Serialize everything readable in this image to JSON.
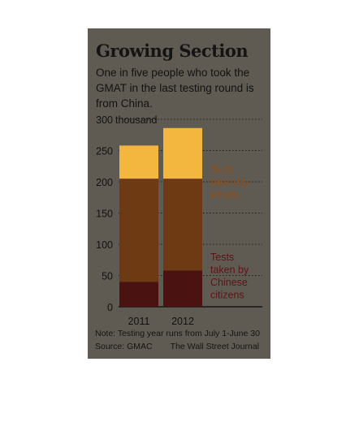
{
  "title": "Growing Section",
  "subtitle": "One in five people who took the GMAT in the last testing round is from China.",
  "note": "Note: Testing year runs from July 1-June 30",
  "source": "Source: GMAC",
  "credit": "The Wall Street Journal",
  "colors": {
    "panel": "#5f5b53",
    "others_top": "#f3b63e",
    "others": "#6e3a14",
    "chinese": "#4a1211",
    "label_others": "#8c4d1a",
    "label_chinese": "#5e1414"
  },
  "chart_data": {
    "type": "bar",
    "stacked": true,
    "categories": [
      "2011",
      "2012"
    ],
    "ylim": [
      0,
      300
    ],
    "yticks": [
      "0",
      "50",
      "100",
      "150",
      "200",
      "250",
      "300 thousand"
    ],
    "grid": true,
    "series": [
      {
        "name": "Tests taken by Chinese citizens",
        "values": [
          40,
          58
        ]
      },
      {
        "name": "Tests taken by others",
        "values": [
          218,
          228
        ]
      }
    ],
    "totals": [
      258,
      286
    ]
  }
}
